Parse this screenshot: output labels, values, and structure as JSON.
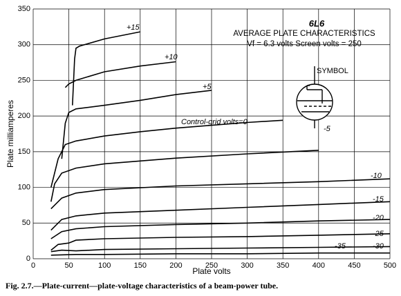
{
  "chart_data": {
    "type": "line",
    "title": "6L6",
    "subtitle": "AVERAGE PLATE CHARACTERISTICS",
    "annotations": [
      "Vf = 6.3 volts   Screen volts = 250",
      "SYMBOL"
    ],
    "caption": "Fig. 2.7.—Plate-current—plate-voltage characteristics of a beam-power tube.",
    "x_label": "Plate volts",
    "y_label": "Plate milliamperes",
    "xlim": [
      0,
      500
    ],
    "xticks": [
      0,
      50,
      100,
      150,
      200,
      250,
      300,
      350,
      400,
      450,
      500
    ],
    "ylim": [
      0,
      350
    ],
    "yticks": [
      0,
      50,
      100,
      150,
      200,
      250,
      300,
      350
    ],
    "grid": true,
    "color": "#000000",
    "series": [
      {
        "name": "+15",
        "x": [
          55,
          58,
          60,
          65,
          100,
          150
        ],
        "values": [
          215,
          280,
          295,
          298,
          308,
          318
        ]
      },
      {
        "name": "+10",
        "x": [
          45,
          50,
          60,
          100,
          150,
          200
        ],
        "values": [
          240,
          245,
          250,
          262,
          270,
          276
        ]
      },
      {
        "name": "+5",
        "x": [
          40,
          45,
          50,
          60,
          100,
          150,
          200,
          250
        ],
        "values": [
          140,
          190,
          205,
          210,
          215,
          222,
          230,
          236
        ]
      },
      {
        "name": "Control-grid volts=0",
        "x": [
          25,
          35,
          45,
          60,
          100,
          150,
          200,
          250,
          300,
          350
        ],
        "values": [
          100,
          140,
          160,
          165,
          172,
          178,
          183,
          187,
          191,
          194
        ]
      },
      {
        "name": "-5",
        "x": [
          25,
          30,
          40,
          60,
          100,
          200,
          300,
          400
        ],
        "values": [
          80,
          105,
          120,
          127,
          133,
          141,
          147,
          152
        ]
      },
      {
        "name": "-10",
        "x": [
          25,
          40,
          60,
          100,
          200,
          300,
          400,
          500
        ],
        "values": [
          70,
          85,
          92,
          97,
          102,
          105,
          108,
          112
        ]
      },
      {
        "name": "-15",
        "x": [
          25,
          40,
          60,
          100,
          200,
          300,
          400,
          500
        ],
        "values": [
          40,
          55,
          60,
          64,
          68,
          72,
          76,
          80
        ]
      },
      {
        "name": "-20",
        "x": [
          25,
          40,
          60,
          100,
          200,
          300,
          400,
          500
        ],
        "values": [
          28,
          38,
          42,
          45,
          48,
          50,
          53,
          55
        ]
      },
      {
        "name": "-25",
        "x": [
          25,
          35,
          50,
          60,
          100,
          200,
          300,
          400,
          500
        ],
        "values": [
          12,
          20,
          22,
          26,
          28,
          30,
          31,
          33,
          35
        ]
      },
      {
        "name": "-30",
        "x": [
          25,
          40,
          60,
          100,
          200,
          300,
          400,
          500
        ],
        "values": [
          10,
          12,
          11,
          13,
          14,
          15,
          16,
          17
        ]
      },
      {
        "name": "-35",
        "x": [
          25,
          60,
          100,
          200,
          300,
          400,
          500
        ],
        "values": [
          5,
          6,
          6,
          7,
          7,
          8,
          8
        ]
      }
    ]
  }
}
